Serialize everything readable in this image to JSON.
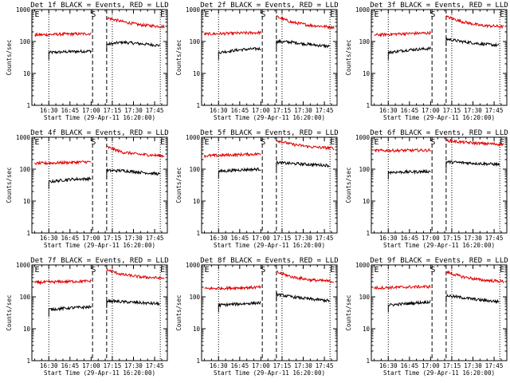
{
  "figure": {
    "background": "#ffffff",
    "events_color": "#000000",
    "lld_color": "#e00000"
  },
  "chart_data": [
    {
      "type": "line",
      "title": "Det 1f BLACK = Events, RED = LLD",
      "xlabel": "Start Time (29-Apr-11 16:20:00)",
      "ylabel": "Counts/sec",
      "ylog": true,
      "ylim": [
        1,
        1000
      ],
      "x_ticks": [
        "16:30",
        "16:45",
        "17:00",
        "17:15",
        "17:30",
        "17:45"
      ],
      "y_ticks": [
        "1",
        "10",
        "100",
        "1000"
      ],
      "markers": [
        {
          "label": "E",
          "time": "16:20"
        },
        {
          "label": "S",
          "time": "17:00"
        },
        {
          "label": "E",
          "time": "17:49"
        }
      ],
      "dotted_lines": [
        "16:30",
        "17:15",
        "17:49"
      ],
      "dashed_lines": [
        "17:01",
        "17:11"
      ],
      "series": [
        {
          "name": "Events",
          "color": "#000000",
          "segments": [
            {
              "x": [
                "16:30",
                "16:45",
                "17:00"
              ],
              "y": [
                45,
                48,
                50
              ]
            },
            {
              "x": [
                "17:11",
                "17:22",
                "17:35",
                "17:49"
              ],
              "y": [
                80,
                95,
                85,
                75
              ]
            }
          ]
        },
        {
          "name": "LLD",
          "color": "#e00000",
          "segments": [
            {
              "x": [
                "16:20",
                "16:40",
                "17:00"
              ],
              "y": [
                160,
                170,
                175
              ]
            },
            {
              "x": [
                "17:11",
                "17:22",
                "17:35",
                "17:52"
              ],
              "y": [
                550,
                420,
                330,
                290
              ]
            }
          ]
        }
      ]
    },
    {
      "type": "line",
      "title": "Det 2f BLACK = Events, RED = LLD",
      "xlabel": "Start Time (29-Apr-11 16:20:00)",
      "ylabel": "Counts/sec",
      "ylog": true,
      "ylim": [
        1,
        1000
      ],
      "x_ticks": [
        "16:30",
        "16:45",
        "17:00",
        "17:15",
        "17:30",
        "17:45"
      ],
      "y_ticks": [
        "1",
        "10",
        "100",
        "1000"
      ],
      "markers": [
        {
          "label": "E",
          "time": "16:20"
        },
        {
          "label": "S",
          "time": "17:00"
        },
        {
          "label": "E",
          "time": "17:49"
        }
      ],
      "dotted_lines": [
        "16:30",
        "17:15",
        "17:49"
      ],
      "dashed_lines": [
        "17:01",
        "17:11"
      ],
      "series": [
        {
          "name": "Events",
          "color": "#000000",
          "segments": [
            {
              "x": [
                "16:30",
                "16:45",
                "17:00"
              ],
              "y": [
                45,
                55,
                60
              ]
            },
            {
              "x": [
                "17:11",
                "17:22",
                "17:35",
                "17:49"
              ],
              "y": [
                100,
                95,
                80,
                70
              ]
            }
          ]
        },
        {
          "name": "LLD",
          "color": "#e00000",
          "segments": [
            {
              "x": [
                "16:20",
                "16:40",
                "17:00"
              ],
              "y": [
                170,
                180,
                190
              ]
            },
            {
              "x": [
                "17:11",
                "17:22",
                "17:35",
                "17:52"
              ],
              "y": [
                600,
                400,
                320,
                280
              ]
            }
          ]
        }
      ]
    },
    {
      "type": "line",
      "title": "Det 3f BLACK = Events, RED = LLD",
      "xlabel": "Start Time (29-Apr-11 16:20:00)",
      "ylabel": "Counts/sec",
      "ylog": true,
      "ylim": [
        1,
        1000
      ],
      "x_ticks": [
        "16:30",
        "16:45",
        "17:00",
        "17:15",
        "17:30",
        "17:45"
      ],
      "y_ticks": [
        "1",
        "10",
        "100",
        "1000"
      ],
      "markers": [
        {
          "label": "E",
          "time": "16:20"
        },
        {
          "label": "S",
          "time": "17:00"
        },
        {
          "label": "E",
          "time": "17:49"
        }
      ],
      "dotted_lines": [
        "16:30",
        "17:15",
        "17:49"
      ],
      "dashed_lines": [
        "17:01",
        "17:11"
      ],
      "series": [
        {
          "name": "Events",
          "color": "#000000",
          "segments": [
            {
              "x": [
                "16:30",
                "16:45",
                "17:00"
              ],
              "y": [
                45,
                55,
                60
              ]
            },
            {
              "x": [
                "17:11",
                "17:22",
                "17:35",
                "17:49"
              ],
              "y": [
                120,
                100,
                85,
                75
              ]
            }
          ]
        },
        {
          "name": "LLD",
          "color": "#e00000",
          "segments": [
            {
              "x": [
                "16:20",
                "16:40",
                "17:00"
              ],
              "y": [
                160,
                175,
                185
              ]
            },
            {
              "x": [
                "17:11",
                "17:22",
                "17:35",
                "17:52"
              ],
              "y": [
                600,
                420,
                320,
                290
              ]
            }
          ]
        }
      ]
    },
    {
      "type": "line",
      "title": "Det 4f BLACK = Events, RED = LLD",
      "xlabel": "Start Time (29-Apr-11 16:20:00)",
      "ylabel": "Counts/sec",
      "ylog": true,
      "ylim": [
        1,
        1000
      ],
      "x_ticks": [
        "16:30",
        "16:45",
        "17:00",
        "17:15",
        "17:30",
        "17:45"
      ],
      "y_ticks": [
        "1",
        "10",
        "100",
        "1000"
      ],
      "markers": [
        {
          "label": "E",
          "time": "16:20"
        },
        {
          "label": "S",
          "time": "17:00"
        },
        {
          "label": "E",
          "time": "17:49"
        }
      ],
      "dotted_lines": [
        "16:30",
        "17:15",
        "17:49"
      ],
      "dashed_lines": [
        "17:01",
        "17:11"
      ],
      "series": [
        {
          "name": "Events",
          "color": "#000000",
          "segments": [
            {
              "x": [
                "16:30",
                "16:45",
                "17:00"
              ],
              "y": [
                40,
                48,
                50
              ]
            },
            {
              "x": [
                "17:11",
                "17:22",
                "17:35",
                "17:49"
              ],
              "y": [
                90,
                90,
                80,
                70
              ]
            }
          ]
        },
        {
          "name": "LLD",
          "color": "#e00000",
          "segments": [
            {
              "x": [
                "16:20",
                "16:40",
                "17:00"
              ],
              "y": [
                150,
                160,
                170
              ]
            },
            {
              "x": [
                "17:11",
                "17:22",
                "17:35",
                "17:52"
              ],
              "y": [
                500,
                340,
                290,
                260
              ]
            }
          ]
        }
      ]
    },
    {
      "type": "line",
      "title": "Det 5f BLACK = Events, RED = LLD",
      "xlabel": "Start Time (29-Apr-11 16:20:00)",
      "ylabel": "Counts/sec",
      "ylog": true,
      "ylim": [
        1,
        1000
      ],
      "x_ticks": [
        "16:30",
        "16:45",
        "17:00",
        "17:15",
        "17:30",
        "17:45"
      ],
      "y_ticks": [
        "1",
        "10",
        "100",
        "1000"
      ],
      "markers": [
        {
          "label": "E",
          "time": "16:20"
        },
        {
          "label": "S",
          "time": "17:00"
        },
        {
          "label": "E",
          "time": "17:49"
        }
      ],
      "dotted_lines": [
        "16:30",
        "17:15",
        "17:49"
      ],
      "dashed_lines": [
        "17:01",
        "17:11"
      ],
      "series": [
        {
          "name": "Events",
          "color": "#000000",
          "segments": [
            {
              "x": [
                "16:30",
                "16:45",
                "17:00"
              ],
              "y": [
                85,
                95,
                100
              ]
            },
            {
              "x": [
                "17:11",
                "17:22",
                "17:35",
                "17:49"
              ],
              "y": [
                160,
                150,
                140,
                130
              ]
            }
          ]
        },
        {
          "name": "LLD",
          "color": "#e00000",
          "segments": [
            {
              "x": [
                "16:20",
                "16:40",
                "17:00"
              ],
              "y": [
                260,
                280,
                300
              ]
            },
            {
              "x": [
                "17:11",
                "17:22",
                "17:35",
                "17:52"
              ],
              "y": [
                800,
                600,
                500,
                450
              ]
            }
          ]
        }
      ]
    },
    {
      "type": "line",
      "title": "Det 6f BLACK = Events, RED = LLD",
      "xlabel": "Start Time (29-Apr-11 16:20:00)",
      "ylabel": "Counts/sec",
      "ylog": true,
      "ylim": [
        1,
        1000
      ],
      "x_ticks": [
        "16:30",
        "16:45",
        "17:00",
        "17:15",
        "17:30",
        "17:45"
      ],
      "y_ticks": [
        "1",
        "10",
        "100",
        "1000"
      ],
      "markers": [
        {
          "label": "E",
          "time": "16:20"
        },
        {
          "label": "S",
          "time": "17:00"
        },
        {
          "label": "E",
          "time": "17:49"
        }
      ],
      "dotted_lines": [
        "16:30",
        "17:15",
        "17:49"
      ],
      "dashed_lines": [
        "17:01",
        "17:11"
      ],
      "series": [
        {
          "name": "Events",
          "color": "#000000",
          "segments": [
            {
              "x": [
                "16:30",
                "16:45",
                "17:00"
              ],
              "y": [
                80,
                82,
                85
              ]
            },
            {
              "x": [
                "17:11",
                "17:22",
                "17:35",
                "17:49"
              ],
              "y": [
                170,
                160,
                150,
                140
              ]
            }
          ]
        },
        {
          "name": "LLD",
          "color": "#e00000",
          "segments": [
            {
              "x": [
                "16:20",
                "16:40",
                "17:00"
              ],
              "y": [
                380,
                385,
                390
              ]
            },
            {
              "x": [
                "17:11",
                "17:22",
                "17:35",
                "17:52"
              ],
              "y": [
                800,
                700,
                640,
                600
              ]
            }
          ]
        }
      ]
    },
    {
      "type": "line",
      "title": "Det 7f BLACK = Events, RED = LLD",
      "xlabel": "Start Time (29-Apr-11 16:20:00)",
      "ylabel": "Counts/sec",
      "ylog": true,
      "ylim": [
        1,
        1000
      ],
      "x_ticks": [
        "16:30",
        "16:45",
        "17:00",
        "17:15",
        "17:30",
        "17:45"
      ],
      "y_ticks": [
        "1",
        "10",
        "100",
        "1000"
      ],
      "markers": [
        {
          "label": "E",
          "time": "16:20"
        },
        {
          "label": "S",
          "time": "17:00"
        },
        {
          "label": "E",
          "time": "17:49"
        }
      ],
      "dotted_lines": [
        "16:30",
        "17:15",
        "17:49"
      ],
      "dashed_lines": [
        "17:01",
        "17:11"
      ],
      "series": [
        {
          "name": "Events",
          "color": "#000000",
          "segments": [
            {
              "x": [
                "16:30",
                "16:45",
                "17:00"
              ],
              "y": [
                40,
                45,
                48
              ]
            },
            {
              "x": [
                "17:11",
                "17:22",
                "17:35",
                "17:49"
              ],
              "y": [
                75,
                70,
                65,
                60
              ]
            }
          ]
        },
        {
          "name": "LLD",
          "color": "#e00000",
          "segments": [
            {
              "x": [
                "16:20",
                "16:40",
                "17:00"
              ],
              "y": [
                280,
                300,
                310
              ]
            },
            {
              "x": [
                "17:11",
                "17:22",
                "17:35",
                "17:52"
              ],
              "y": [
                700,
                500,
                420,
                380
              ]
            }
          ]
        }
      ]
    },
    {
      "type": "line",
      "title": "Det 8f BLACK = Events, RED = LLD",
      "xlabel": "Start Time (29-Apr-11 16:20:00)",
      "ylabel": "Counts/sec",
      "ylog": true,
      "ylim": [
        1,
        1000
      ],
      "x_ticks": [
        "16:30",
        "16:45",
        "17:00",
        "17:15",
        "17:30",
        "17:45"
      ],
      "y_ticks": [
        "1",
        "10",
        "100",
        "1000"
      ],
      "markers": [
        {
          "label": "E",
          "time": "16:20"
        },
        {
          "label": "S",
          "time": "17:00"
        },
        {
          "label": "E",
          "time": "17:49"
        }
      ],
      "dotted_lines": [
        "16:30",
        "17:15",
        "17:49"
      ],
      "dashed_lines": [
        "17:01",
        "17:11"
      ],
      "series": [
        {
          "name": "Events",
          "color": "#000000",
          "segments": [
            {
              "x": [
                "16:30",
                "16:45",
                "17:00"
              ],
              "y": [
                55,
                60,
                65
              ]
            },
            {
              "x": [
                "17:11",
                "17:22",
                "17:35",
                "17:49"
              ],
              "y": [
                120,
                100,
                85,
                75
              ]
            }
          ]
        },
        {
          "name": "LLD",
          "color": "#e00000",
          "segments": [
            {
              "x": [
                "16:20",
                "16:40",
                "17:00"
              ],
              "y": [
                180,
                190,
                200
              ]
            },
            {
              "x": [
                "17:11",
                "17:22",
                "17:35",
                "17:52"
              ],
              "y": [
                600,
                420,
                340,
                300
              ]
            }
          ]
        }
      ]
    },
    {
      "type": "line",
      "title": "Det 9f BLACK = Events, RED = LLD",
      "xlabel": "Start Time (29-Apr-11 16:20:00)",
      "ylabel": "Counts/sec",
      "ylog": true,
      "ylim": [
        1,
        1000
      ],
      "x_ticks": [
        "16:30",
        "16:45",
        "17:00",
        "17:15",
        "17:30",
        "17:45"
      ],
      "y_ticks": [
        "1",
        "10",
        "100",
        "1000"
      ],
      "markers": [
        {
          "label": "E",
          "time": "16:20"
        },
        {
          "label": "S",
          "time": "17:00"
        },
        {
          "label": "E",
          "time": "17:49"
        }
      ],
      "dotted_lines": [
        "16:30",
        "17:15",
        "17:49"
      ],
      "dashed_lines": [
        "17:01",
        "17:11"
      ],
      "series": [
        {
          "name": "Events",
          "color": "#000000",
          "segments": [
            {
              "x": [
                "16:30",
                "16:45",
                "17:00"
              ],
              "y": [
                55,
                62,
                70
              ]
            },
            {
              "x": [
                "17:11",
                "17:22",
                "17:35",
                "17:49"
              ],
              "y": [
                110,
                95,
                80,
                70
              ]
            }
          ]
        },
        {
          "name": "LLD",
          "color": "#e00000",
          "segments": [
            {
              "x": [
                "16:20",
                "16:40",
                "17:00"
              ],
              "y": [
                190,
                200,
                210
              ]
            },
            {
              "x": [
                "17:11",
                "17:22",
                "17:35",
                "17:52"
              ],
              "y": [
                600,
                430,
                340,
                300
              ]
            }
          ]
        }
      ]
    }
  ]
}
